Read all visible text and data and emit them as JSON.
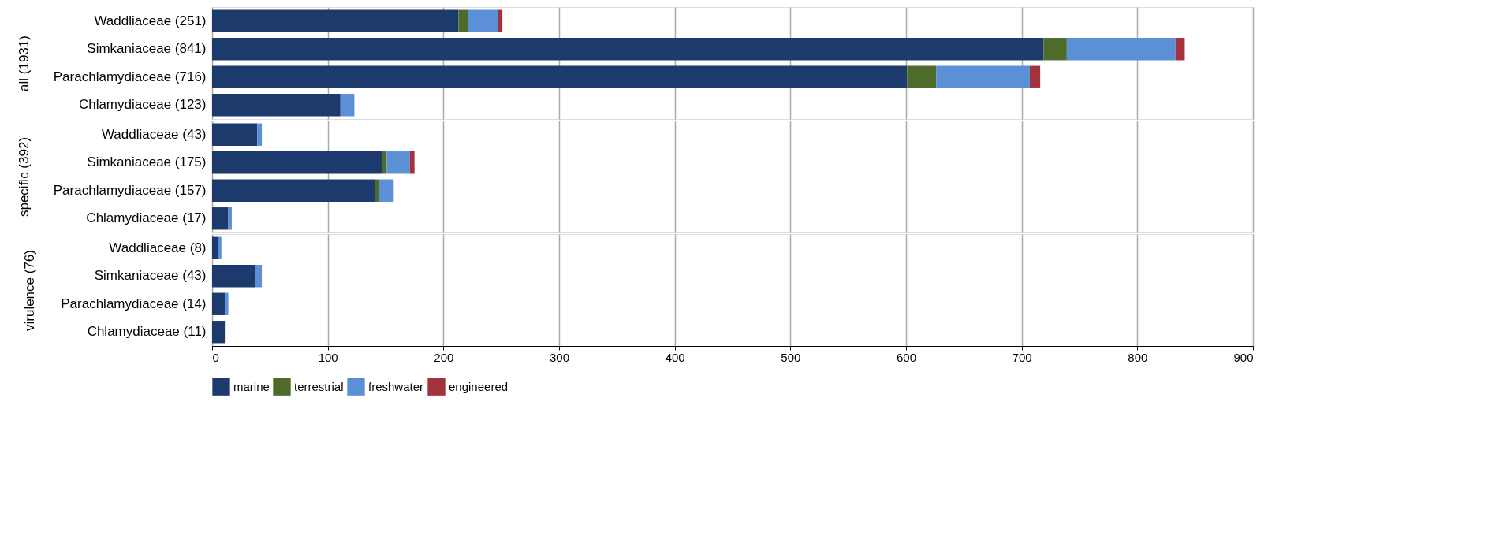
{
  "chart_data": [
    {
      "type": "bar",
      "orientation": "horizontal",
      "stacked": true,
      "ylabel": "all (1931)",
      "categories": [
        "Waddliaceae (251)",
        "Simkaniaceae (841)",
        "Parachlamydiaceae (716)",
        "Chlamydiaceae (123)"
      ],
      "xlim": [
        0,
        900
      ],
      "xticks": [
        0,
        100,
        200,
        300,
        400,
        500,
        600,
        700,
        800,
        900
      ],
      "grid": "x",
      "tick_labels": "y",
      "legend": false,
      "series": [
        {
          "color": "#1c3a6b",
          "values": [
            213,
            719,
            601,
            111
          ]
        },
        {
          "color": "#4e6b2a",
          "values": [
            8,
            20,
            25,
            0
          ]
        },
        {
          "color": "#5b8fd6",
          "values": [
            26,
            94,
            81,
            12
          ]
        },
        {
          "color": "#a3323f",
          "values": [
            4,
            8,
            9,
            0
          ]
        }
      ]
    },
    {
      "type": "bar",
      "orientation": "horizontal",
      "stacked": true,
      "ylabel": "specific (392)",
      "categories": [
        "Waddliaceae (43)",
        "Simkaniaceae (175)",
        "Parachlamydiaceae (157)",
        "Chlamydiaceae (17)"
      ],
      "xlim": [
        0,
        900
      ],
      "xticks": [
        0,
        100,
        200,
        300,
        400,
        500,
        600,
        700,
        800,
        900
      ],
      "grid": "x",
      "tick_labels": "y",
      "legend": false,
      "series": [
        {
          "color": "#1c3a6b",
          "values": [
            39,
            147,
            141,
            14
          ]
        },
        {
          "color": "#4e6b2a",
          "values": [
            0,
            4,
            3,
            0
          ]
        },
        {
          "color": "#5b8fd6",
          "values": [
            4,
            20,
            13,
            3
          ]
        },
        {
          "color": "#a3323f",
          "values": [
            0,
            4,
            0,
            0
          ]
        }
      ]
    },
    {
      "type": "bar",
      "orientation": "horizontal",
      "stacked": true,
      "ylabel": "virulence (76)",
      "categories": [
        "Waddliaceae (8)",
        "Simkaniaceae (43)",
        "Parachlamydiaceae (14)",
        "Chlamydiaceae (11)"
      ],
      "xlim": [
        0,
        900
      ],
      "xticks": [
        0,
        100,
        200,
        300,
        400,
        500,
        600,
        700,
        800,
        900
      ],
      "grid": "x",
      "legend": "bottom",
      "series": [
        {
          "name": "marine",
          "color": "#1c3a6b",
          "values": [
            5,
            37,
            11,
            11
          ]
        },
        {
          "name": "terrestrial",
          "color": "#4e6b2a",
          "values": [
            0,
            0,
            0,
            0
          ]
        },
        {
          "name": "freshwater",
          "color": "#5b8fd6",
          "values": [
            3,
            6,
            3,
            0
          ]
        },
        {
          "name": "engineered",
          "color": "#a3323f",
          "values": [
            0,
            0,
            0,
            0
          ]
        }
      ]
    }
  ]
}
